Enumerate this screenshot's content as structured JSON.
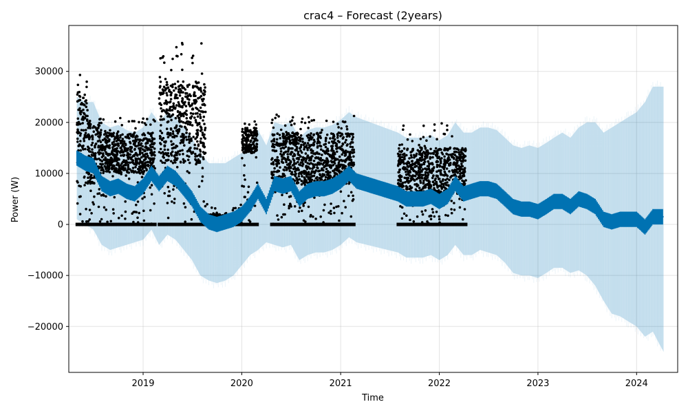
{
  "chart_data": {
    "type": "line",
    "title": "crac4 – Forecast (2years)",
    "xlabel": "Time",
    "ylabel": "Power (W)",
    "x_ticks": [
      "2019",
      "2020",
      "2021",
      "2022",
      "2023",
      "2024"
    ],
    "y_ticks": [
      "−20000",
      "−10000",
      "0",
      "10000",
      "20000",
      "30000"
    ],
    "xlim": [
      "2018-04-01",
      "2024-06-01"
    ],
    "ylim": [
      -29000,
      39000
    ],
    "grid": true,
    "colors": {
      "forecast_line": "#0072B2",
      "uncertainty_band": "#0072B2",
      "observations": "#000000"
    },
    "series": [
      {
        "kind": "forecast",
        "x": [
          "2018-05-01",
          "2018-06-01",
          "2018-07-01",
          "2018-08-01",
          "2018-09-01",
          "2018-10-01",
          "2018-11-01",
          "2018-12-01",
          "2019-01-01",
          "2019-02-01",
          "2019-03-01",
          "2019-04-01",
          "2019-05-01",
          "2019-06-01",
          "2019-07-01",
          "2019-08-01",
          "2019-09-01",
          "2019-10-01",
          "2019-11-01",
          "2019-12-01",
          "2020-01-01",
          "2020-02-01",
          "2020-03-01",
          "2020-04-01",
          "2020-05-01",
          "2020-06-01",
          "2020-07-01",
          "2020-08-01",
          "2020-09-01",
          "2020-10-01",
          "2020-11-01",
          "2020-12-01",
          "2021-01-01",
          "2021-02-01",
          "2021-03-01",
          "2021-08-01",
          "2021-09-01",
          "2021-10-01",
          "2021-11-01",
          "2021-12-01",
          "2022-01-01",
          "2022-02-01",
          "2022-03-01",
          "2022-04-01",
          "2022-05-01",
          "2022-06-01",
          "2022-07-01",
          "2022-08-01",
          "2022-09-01",
          "2022-10-01",
          "2022-11-01",
          "2022-12-01",
          "2023-01-01",
          "2023-02-01",
          "2023-03-01",
          "2023-04-01",
          "2023-05-01",
          "2023-06-01",
          "2023-07-01",
          "2023-08-01",
          "2023-09-01",
          "2023-10-01",
          "2023-11-01",
          "2023-12-01",
          "2024-01-01",
          "2024-02-01",
          "2024-03-01",
          "2024-04-10"
        ],
        "yhat": [
          13000,
          12000,
          11500,
          8000,
          7000,
          7500,
          6500,
          6000,
          7500,
          10000,
          8000,
          10000,
          9000,
          7000,
          5000,
          2000,
          500,
          0,
          500,
          1000,
          2000,
          4000,
          6500,
          3500,
          8000,
          7500,
          8000,
          5000,
          6500,
          7000,
          7000,
          7500,
          8500,
          10000,
          8500,
          6000,
          5000,
          5000,
          5000,
          5500,
          4500,
          5500,
          8000,
          6000,
          6500,
          7000,
          7000,
          6500,
          5000,
          3500,
          3000,
          3000,
          2500,
          3500,
          4500,
          4500,
          3500,
          5000,
          4500,
          3500,
          1000,
          500,
          1000,
          1000,
          1000,
          -500,
          1500,
          1500
        ],
        "yhat_lower": [
          1000,
          0,
          -1000,
          -4000,
          -5000,
          -4500,
          -4000,
          -3500,
          -3000,
          -1000,
          -4000,
          -2000,
          -3000,
          -5000,
          -7000,
          -10000,
          -11000,
          -11500,
          -11000,
          -10000,
          -8000,
          -6000,
          -5000,
          -3500,
          -4000,
          -4500,
          -4000,
          -7000,
          -6000,
          -5500,
          -5500,
          -5000,
          -4000,
          -2500,
          -3500,
          -5500,
          -6500,
          -6500,
          -6500,
          -6000,
          -7000,
          -6000,
          -4000,
          -6000,
          -6000,
          -5000,
          -5500,
          -6000,
          -7500,
          -9500,
          -10000,
          -10000,
          -10500,
          -9500,
          -8500,
          -8500,
          -9500,
          -9000,
          -10000,
          -12000,
          -15000,
          -17500,
          -18000,
          -19000,
          -20000,
          -22000,
          -21000,
          -25000
        ],
        "yhat_upper": [
          25000,
          24000,
          24000,
          20000,
          19000,
          19500,
          18500,
          18000,
          19000,
          22000,
          20000,
          22000,
          21000,
          19000,
          17000,
          14000,
          12000,
          12000,
          12000,
          13000,
          14000,
          16000,
          18500,
          15500,
          20000,
          19500,
          20000,
          17000,
          18500,
          19000,
          19000,
          19500,
          20500,
          22000,
          21000,
          18000,
          17000,
          17000,
          17000,
          17500,
          16500,
          17500,
          20000,
          18000,
          18000,
          19000,
          19000,
          18500,
          17000,
          15500,
          15000,
          15500,
          15000,
          16000,
          17000,
          18000,
          17000,
          19000,
          20000,
          20000,
          18000,
          19000,
          20000,
          21000,
          22000,
          24000,
          27000,
          27000
        ]
      },
      {
        "kind": "observations",
        "periods": [
          {
            "start": "2018-05-01",
            "end": "2018-06-10",
            "min": 0,
            "low": 12000,
            "high": 26000,
            "max": 30000
          },
          {
            "start": "2018-06-10",
            "end": "2018-08-01",
            "min": 0,
            "low": 8000,
            "high": 20000,
            "max": 22000
          },
          {
            "start": "2018-08-01",
            "end": "2019-02-15",
            "min": 0,
            "low": 10000,
            "high": 18000,
            "max": 21000
          },
          {
            "start": "2019-03-01",
            "end": "2019-08-20",
            "min": 0,
            "low": 12000,
            "high": 28000,
            "max": 36000
          },
          {
            "start": "2019-08-20",
            "end": "2020-01-01",
            "min": 0,
            "low": 0,
            "high": 2000,
            "max": 4000
          },
          {
            "start": "2020-01-01",
            "end": "2020-02-28",
            "min": 0,
            "low": 14000,
            "high": 19000,
            "max": 20500
          },
          {
            "start": "2020-04-20",
            "end": "2021-02-20",
            "min": 0,
            "low": 8000,
            "high": 18000,
            "max": 21500
          },
          {
            "start": "2021-08-01",
            "end": "2022-04-10",
            "min": 0,
            "low": 6000,
            "high": 15000,
            "max": 20000
          }
        ]
      }
    ]
  }
}
